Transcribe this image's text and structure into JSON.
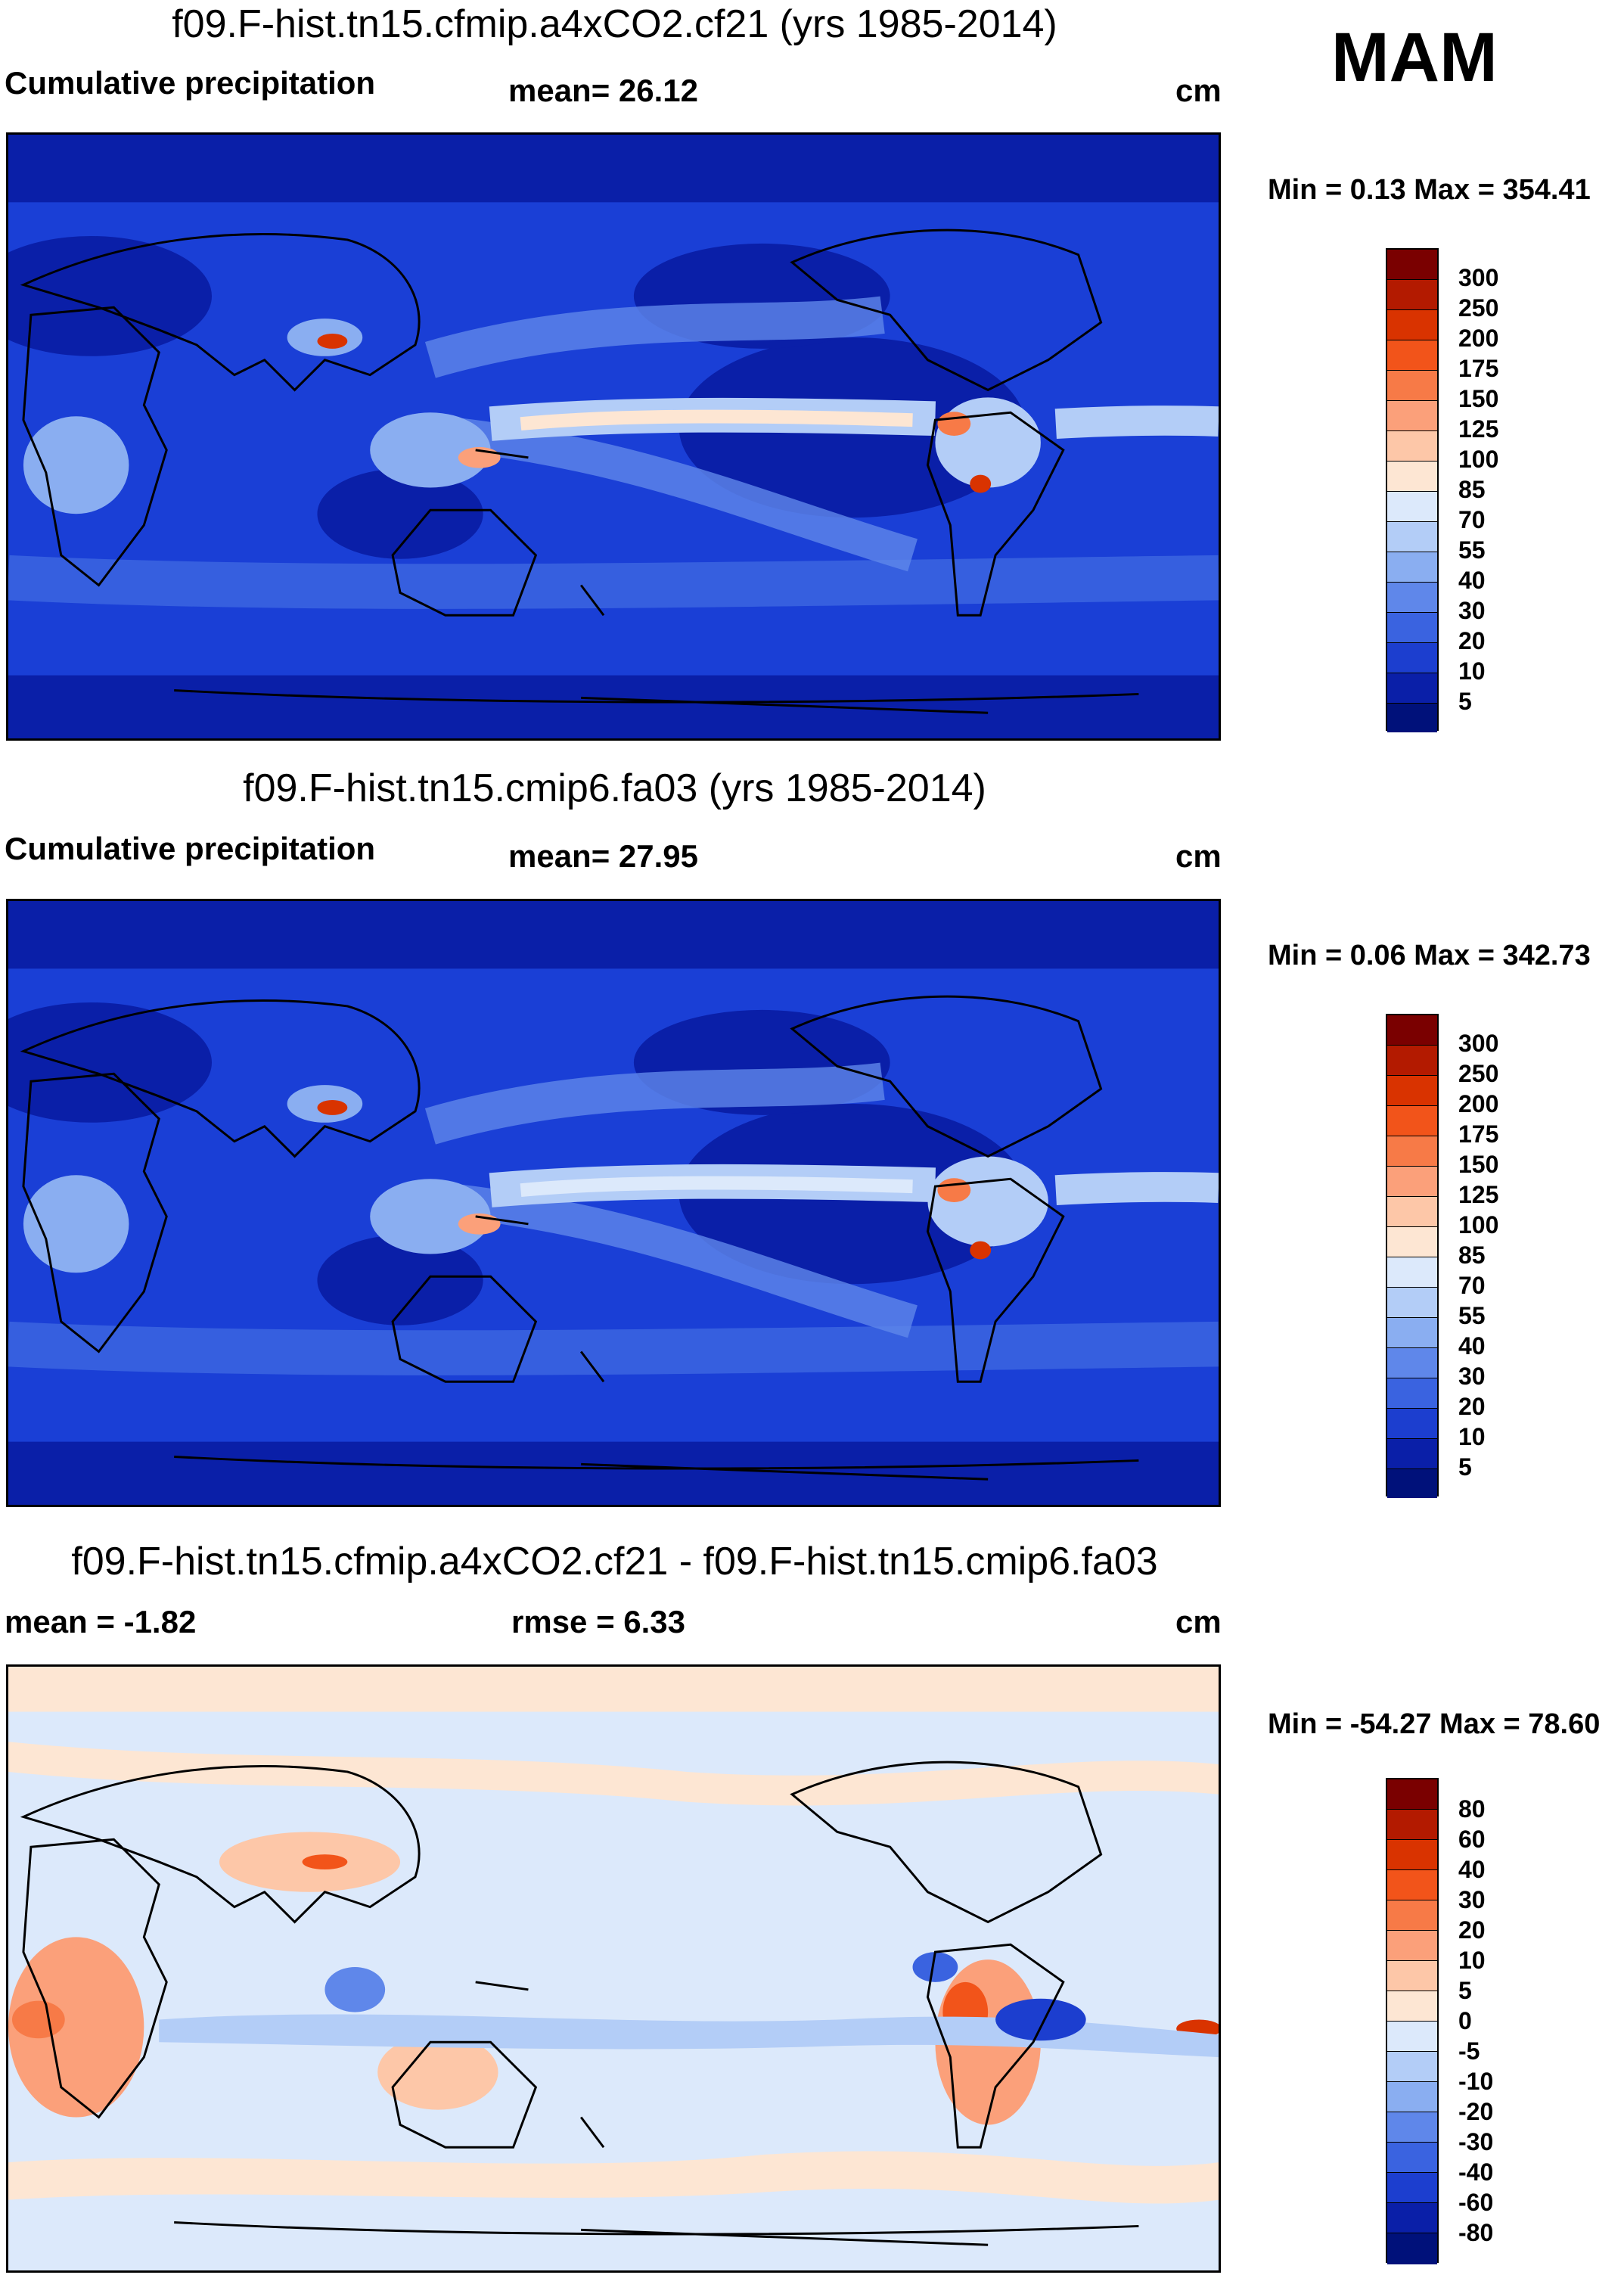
{
  "season_label": "MAM",
  "units": "cm",
  "panels": [
    {
      "title": "f09.F-hist.tn15.cfmip.a4xCO2.cf21 (yrs 1985-2014)",
      "left_label": "Cumulative precipitation",
      "center_label": "mean=  26.12",
      "right_label": "cm",
      "minmax": "Min =   0.13 Max = 354.41",
      "colorbar_ticks": [
        "300",
        "250",
        "200",
        "175",
        "150",
        "125",
        "100",
        "85",
        "70",
        "55",
        "40",
        "30",
        "20",
        "10",
        "5"
      ],
      "colors": [
        "#7a0000",
        "#b31a00",
        "#d93300",
        "#f2541a",
        "#f77a47",
        "#fba07a",
        "#fdc7a8",
        "#fde6d3",
        "#dce9fb",
        "#b3cdf7",
        "#8aaef1",
        "#5f87ea",
        "#3a63e0",
        "#1c3ecf",
        "#0a1fa8",
        "#00117a"
      ]
    },
    {
      "title": "f09.F-hist.tn15.cmip6.fa03 (yrs 1985-2014)",
      "left_label": "Cumulative precipitation",
      "center_label": "mean=  27.95",
      "right_label": "cm",
      "minmax": "Min =   0.06 Max = 342.73",
      "colorbar_ticks": [
        "300",
        "250",
        "200",
        "175",
        "150",
        "125",
        "100",
        "85",
        "70",
        "55",
        "40",
        "30",
        "20",
        "10",
        "5"
      ],
      "colors": [
        "#7a0000",
        "#b31a00",
        "#d93300",
        "#f2541a",
        "#f77a47",
        "#fba07a",
        "#fdc7a8",
        "#fde6d3",
        "#dce9fb",
        "#b3cdf7",
        "#8aaef1",
        "#5f87ea",
        "#3a63e0",
        "#1c3ecf",
        "#0a1fa8",
        "#00117a"
      ]
    },
    {
      "title": "f09.F-hist.tn15.cfmip.a4xCO2.cf21 - f09.F-hist.tn15.cmip6.fa03",
      "left_label": "mean =  -1.82",
      "center_label": "rmse =    6.33",
      "right_label": "cm",
      "minmax": "Min = -54.27 Max =  78.60",
      "colorbar_ticks": [
        "80",
        "60",
        "40",
        "30",
        "20",
        "10",
        "5",
        "0",
        "-5",
        "-10",
        "-20",
        "-30",
        "-40",
        "-60",
        "-80"
      ],
      "colors": [
        "#7a0000",
        "#b31a00",
        "#d93300",
        "#f2541a",
        "#f77a47",
        "#fba07a",
        "#fdc7a8",
        "#fde6d3",
        "#dce9fb",
        "#b3cdf7",
        "#8aaef1",
        "#5f87ea",
        "#3a63e0",
        "#1c3ecf",
        "#0a1fa8",
        "#00117a"
      ]
    }
  ]
}
